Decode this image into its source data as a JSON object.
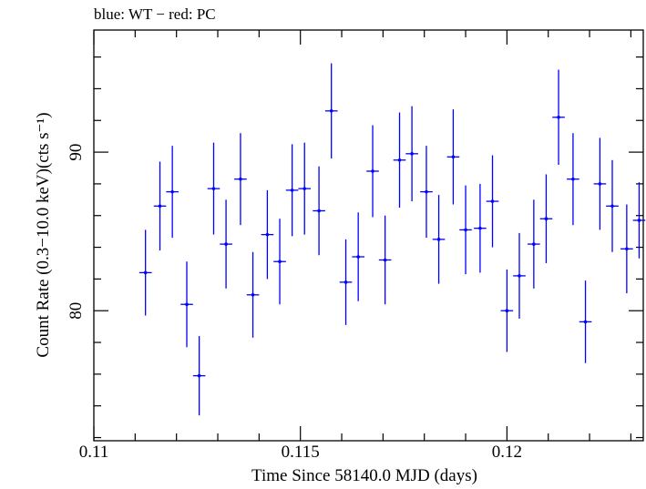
{
  "chart_data": {
    "type": "scatter",
    "title": "blue: WT − red: PC",
    "xlabel": "Time Since 58140.0 MJD (days)",
    "ylabel": "Count Rate (0.3−10.0 keV)(cts s⁻¹)",
    "xlim": [
      0.11,
      0.1233
    ],
    "ylim": [
      71.8,
      97.7
    ],
    "x_ticks": [
      {
        "value": 0.11,
        "label": "0.11"
      },
      {
        "value": 0.115,
        "label": "0.115"
      },
      {
        "value": 0.12,
        "label": "0.12"
      }
    ],
    "y_ticks": [
      {
        "value": 80,
        "label": "80"
      },
      {
        "value": 90,
        "label": "90"
      }
    ],
    "grid": false,
    "series": [
      {
        "color": "#0000ff",
        "x_err": 0.00015,
        "points": [
          {
            "x": 0.11125,
            "y": 82.4,
            "yerr": 2.7
          },
          {
            "x": 0.1116,
            "y": 86.6,
            "yerr": 2.8
          },
          {
            "x": 0.1119,
            "y": 87.5,
            "yerr": 2.9
          },
          {
            "x": 0.11225,
            "y": 80.4,
            "yerr": 2.7
          },
          {
            "x": 0.11255,
            "y": 75.9,
            "yerr": 2.5
          },
          {
            "x": 0.1129,
            "y": 87.7,
            "yerr": 2.9
          },
          {
            "x": 0.1132,
            "y": 84.2,
            "yerr": 2.8
          },
          {
            "x": 0.11355,
            "y": 88.3,
            "yerr": 2.9
          },
          {
            "x": 0.11385,
            "y": 81.0,
            "yerr": 2.7
          },
          {
            "x": 0.1142,
            "y": 84.8,
            "yerr": 2.8
          },
          {
            "x": 0.1145,
            "y": 83.1,
            "yerr": 2.7
          },
          {
            "x": 0.1148,
            "y": 87.6,
            "yerr": 2.9
          },
          {
            "x": 0.1151,
            "y": 87.7,
            "yerr": 2.9
          },
          {
            "x": 0.11545,
            "y": 86.3,
            "yerr": 2.8
          },
          {
            "x": 0.11575,
            "y": 92.6,
            "yerr": 3.0
          },
          {
            "x": 0.1161,
            "y": 81.8,
            "yerr": 2.7
          },
          {
            "x": 0.1164,
            "y": 83.4,
            "yerr": 2.8
          },
          {
            "x": 0.11675,
            "y": 88.8,
            "yerr": 2.9
          },
          {
            "x": 0.11705,
            "y": 83.2,
            "yerr": 2.8
          },
          {
            "x": 0.1174,
            "y": 89.5,
            "yerr": 3.0
          },
          {
            "x": 0.1177,
            "y": 89.9,
            "yerr": 3.0
          },
          {
            "x": 0.11805,
            "y": 87.5,
            "yerr": 2.9
          },
          {
            "x": 0.11835,
            "y": 84.5,
            "yerr": 2.8
          },
          {
            "x": 0.1187,
            "y": 89.7,
            "yerr": 3.0
          },
          {
            "x": 0.119,
            "y": 85.1,
            "yerr": 2.8
          },
          {
            "x": 0.11935,
            "y": 85.2,
            "yerr": 2.8
          },
          {
            "x": 0.11965,
            "y": 86.9,
            "yerr": 2.9
          },
          {
            "x": 0.12,
            "y": 80.0,
            "yerr": 2.6
          },
          {
            "x": 0.1203,
            "y": 82.2,
            "yerr": 2.7
          },
          {
            "x": 0.12065,
            "y": 84.2,
            "yerr": 2.8
          },
          {
            "x": 0.12095,
            "y": 85.8,
            "yerr": 2.8
          },
          {
            "x": 0.12125,
            "y": 92.2,
            "yerr": 3.0
          },
          {
            "x": 0.1216,
            "y": 88.3,
            "yerr": 2.9
          },
          {
            "x": 0.1219,
            "y": 79.3,
            "yerr": 2.6
          },
          {
            "x": 0.12225,
            "y": 88.0,
            "yerr": 2.9
          },
          {
            "x": 0.12255,
            "y": 86.6,
            "yerr": 2.9
          },
          {
            "x": 0.1229,
            "y": 83.9,
            "yerr": 2.8
          },
          {
            "x": 0.1232,
            "y": 85.7,
            "yerr": 2.4
          }
        ]
      }
    ]
  }
}
